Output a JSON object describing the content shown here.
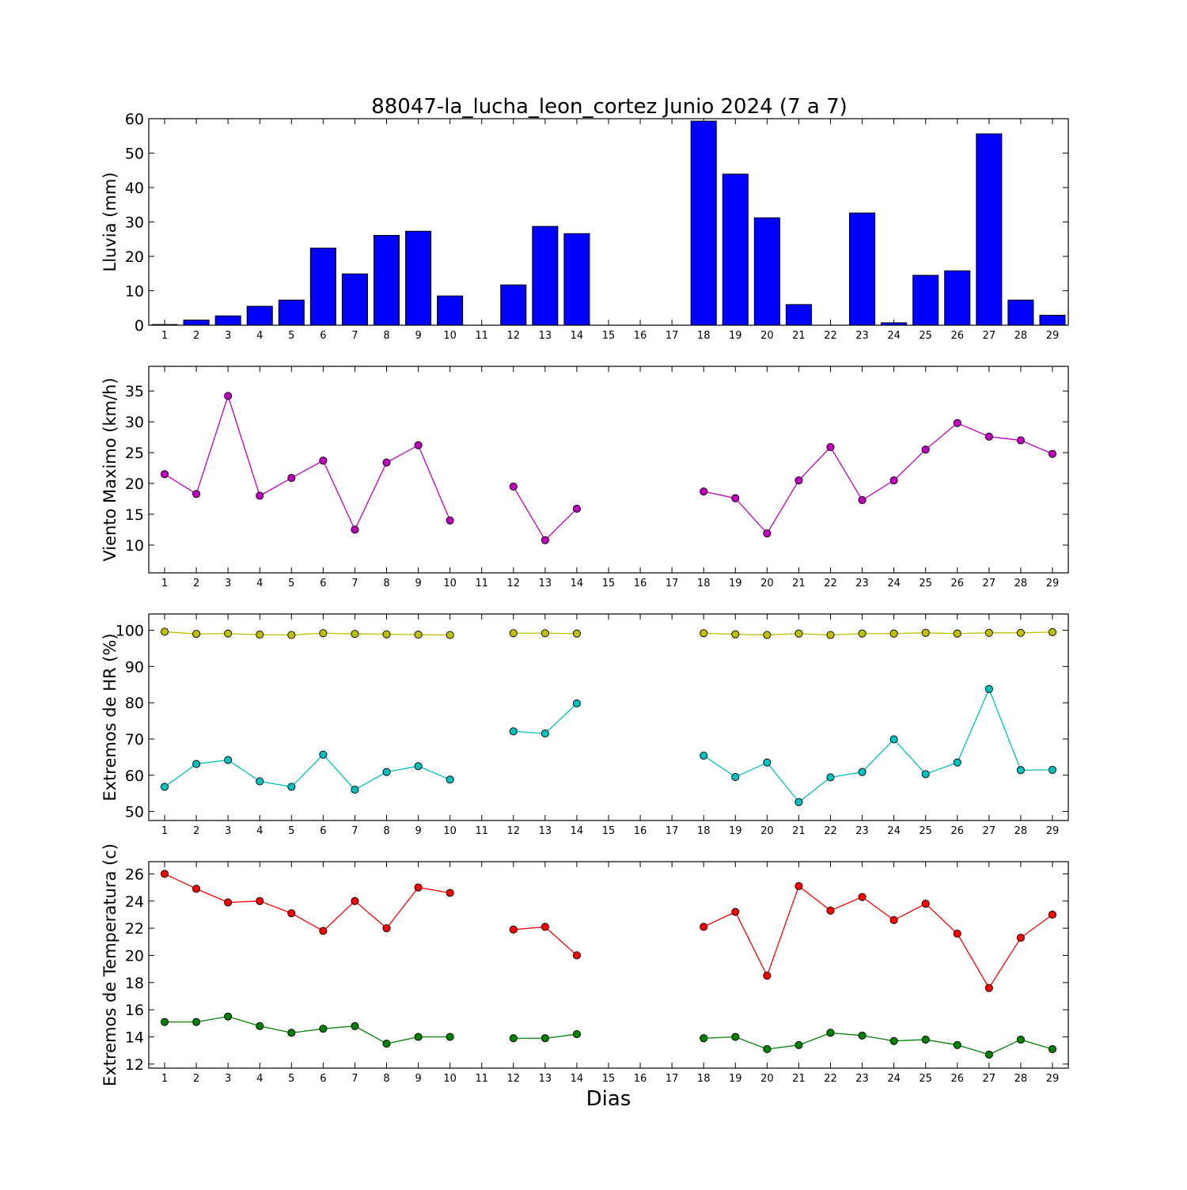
{
  "title": "88047-la_lucha_leon_cortez Junio 2024  (7 a 7)",
  "xlabel": "Dias",
  "days": [
    1,
    2,
    3,
    4,
    5,
    6,
    7,
    8,
    9,
    10,
    11,
    12,
    13,
    14,
    15,
    16,
    17,
    18,
    19,
    20,
    21,
    22,
    23,
    24,
    25,
    26,
    27,
    28,
    29
  ],
  "chart_data": [
    {
      "type": "bar",
      "ylabel": "Lluvia (mm)",
      "ylim": [
        0,
        60
      ],
      "yticks": [
        0,
        10,
        20,
        30,
        40,
        50,
        60
      ],
      "categories": [
        1,
        2,
        3,
        4,
        5,
        6,
        7,
        8,
        9,
        10,
        11,
        12,
        13,
        14,
        15,
        16,
        17,
        18,
        19,
        20,
        21,
        22,
        23,
        24,
        25,
        26,
        27,
        28,
        29
      ],
      "series": [
        {
          "color": "#0000ff",
          "values": [
            0.2,
            1.5,
            2.7,
            5.5,
            7.3,
            22.4,
            14.9,
            26.1,
            27.3,
            8.5,
            0,
            11.7,
            28.7,
            26.6,
            0,
            0,
            0,
            59.3,
            43.9,
            31.2,
            6.0,
            0,
            32.6,
            0.7,
            14.5,
            15.8,
            55.6,
            7.3,
            2.9
          ]
        }
      ]
    },
    {
      "type": "line",
      "ylabel": "Viento Maximo (km/h)",
      "ylim": [
        5.5,
        39
      ],
      "yticks": [
        10,
        15,
        20,
        25,
        30,
        35
      ],
      "series": [
        {
          "color": "#bf00bf",
          "values": [
            21.5,
            18.3,
            34.2,
            18.0,
            20.9,
            23.7,
            12.5,
            23.4,
            26.2,
            14.0,
            null,
            19.5,
            10.8,
            15.9,
            null,
            null,
            null,
            18.7,
            17.6,
            11.9,
            20.5,
            25.9,
            17.3,
            20.5,
            25.5,
            29.8,
            27.6,
            27.0,
            24.8
          ]
        }
      ]
    },
    {
      "type": "line",
      "ylabel": "Extremos de HR (%)",
      "ylim": [
        47.5,
        104.5
      ],
      "yticks": [
        50,
        60,
        70,
        80,
        90,
        100
      ],
      "series": [
        {
          "color": "#bfbf00",
          "values": [
            99.6,
            99.0,
            99.1,
            98.8,
            98.7,
            99.2,
            99.0,
            98.9,
            98.8,
            98.7,
            null,
            99.2,
            99.2,
            99.1,
            null,
            null,
            null,
            99.2,
            98.9,
            98.7,
            99.1,
            98.7,
            99.1,
            99.1,
            99.3,
            99.1,
            99.3,
            99.3,
            99.5
          ]
        },
        {
          "color": "#00bfbf",
          "values": [
            56.8,
            63.1,
            64.2,
            58.3,
            56.8,
            65.7,
            56.0,
            60.9,
            62.5,
            58.8,
            null,
            72.1,
            71.5,
            79.8,
            null,
            null,
            null,
            65.4,
            59.5,
            63.5,
            52.6,
            59.4,
            60.9,
            69.9,
            60.3,
            63.5,
            83.8,
            61.4,
            61.5
          ]
        }
      ]
    },
    {
      "type": "line",
      "ylabel": "Extremos de Temperatura (c)",
      "ylim": [
        11.7,
        26.9
      ],
      "yticks": [
        12,
        14,
        16,
        18,
        20,
        22,
        24,
        26
      ],
      "series": [
        {
          "color": "#ff0000",
          "values": [
            26.0,
            24.9,
            23.9,
            24.0,
            23.1,
            21.8,
            24.0,
            22.0,
            25.0,
            24.6,
            null,
            21.9,
            22.1,
            20.0,
            null,
            null,
            null,
            22.1,
            23.2,
            18.5,
            25.1,
            23.3,
            24.3,
            22.6,
            23.8,
            21.6,
            17.6,
            21.3,
            23.0
          ]
        },
        {
          "color": "#008000",
          "values": [
            15.1,
            15.1,
            15.5,
            14.8,
            14.3,
            14.6,
            14.8,
            13.5,
            14.0,
            14.0,
            null,
            13.9,
            13.9,
            14.2,
            null,
            null,
            null,
            13.9,
            14.0,
            13.1,
            13.4,
            14.3,
            14.1,
            13.7,
            13.8,
            13.4,
            12.7,
            13.8,
            13.1
          ]
        }
      ]
    }
  ]
}
